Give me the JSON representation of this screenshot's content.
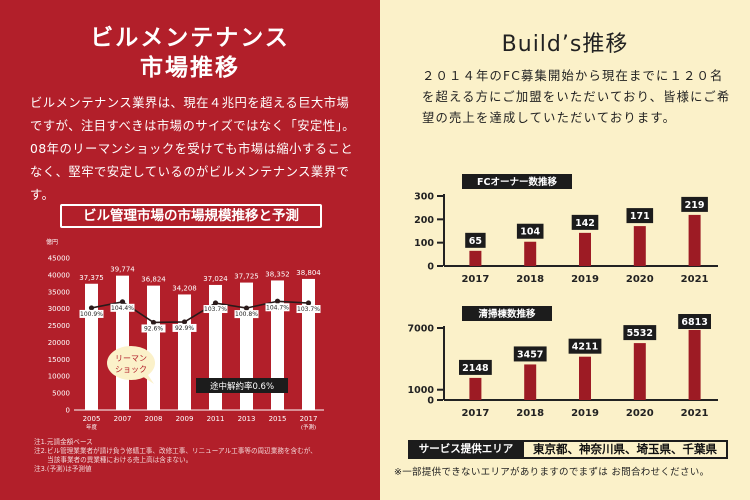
{
  "left": {
    "title_line1": "ビルメンテナンス",
    "title_line2": "市場推移",
    "paragraph": "ビルメンテナンス業界は、現在４兆円を超える巨大市場ですが、注目すべきは市場のサイズではなく「安定性」。08年のリーマンショックを受けても市場は縮小することなく、堅牢で安定しているのがビルメンテナンス業界です。",
    "chart_title": "ビル管理市場の市場規模推移と予測",
    "notes": [
      "注1.元請金額ベース",
      "注2.ビル管理業業者が請け負う修繕工事、改修工事、リニューアル工事等の周辺業務を含むが、",
      "　　当該事業者の異業種における売上高は含まない。",
      "注3.(予測)は予測値"
    ]
  },
  "right": {
    "title": "Build’s推移",
    "paragraph": "２０１４年のFC募集開始から現在までに１２０名を超える方にご加盟をいただいており、皆様にご希望の売上を達成していただいております。",
    "service_area_label": "サービス提供エリア",
    "service_area_value": "東京都、神奈川県、埼玉県、千葉県",
    "note": "※一部提供できないエリアがありますのでまずは お問合わせください。"
  },
  "colors": {
    "left_bg": "#b21f2a",
    "right_bg": "#fbf1c9",
    "bar_red": "#9d1b24",
    "dark": "#1c1c1c"
  },
  "chart_data": [
    {
      "type": "bar",
      "title": "ビル管理市場の市場規模推移と予測",
      "unit_label": "億円",
      "categories": [
        "2005",
        "2007",
        "2008",
        "2009",
        "2011",
        "2013",
        "2015",
        "2017"
      ],
      "category_sublabels": [
        "年度",
        "",
        "",
        "",
        "",
        "",
        "",
        "(予測)"
      ],
      "values": [
        37375,
        39774,
        36824,
        34208,
        37024,
        37725,
        38352,
        38804
      ],
      "value_labels": [
        "37,375",
        "39,774",
        "36,824",
        "34,208",
        "37,024",
        "37,725",
        "38,352",
        "38,804"
      ],
      "line_series": {
        "labels": [
          "100.9%",
          "104.4%",
          "92.6%",
          "92.9%",
          "103.7%",
          "100.8%",
          "104.7%",
          "103.7%"
        ],
        "values": [
          100.9,
          104.4,
          92.6,
          92.9,
          103.7,
          100.8,
          104.7,
          103.7
        ]
      },
      "yticks": [
        "0",
        "5000",
        "10000",
        "15000",
        "20000",
        "25000",
        "30000",
        "35000",
        "40000",
        "45000"
      ],
      "ylim": [
        0,
        45000
      ],
      "annotations": [
        "リーマン ショック",
        "途中解約率0.6%"
      ]
    },
    {
      "type": "bar",
      "title": "FCオーナー数推移",
      "categories": [
        "2017",
        "2018",
        "2019",
        "2020",
        "2021"
      ],
      "values": [
        65,
        104,
        142,
        171,
        219
      ],
      "yticks": [
        "0",
        "100",
        "200",
        "300"
      ],
      "ylim": [
        0,
        300
      ]
    },
    {
      "type": "bar",
      "title": "清掃棟数推移",
      "categories": [
        "2017",
        "2018",
        "2019",
        "2020",
        "2021"
      ],
      "values": [
        2148,
        3457,
        4211,
        5532,
        6813
      ],
      "yticks": [
        "0",
        "1000",
        "7000"
      ],
      "ylim": [
        0,
        7000
      ]
    }
  ]
}
